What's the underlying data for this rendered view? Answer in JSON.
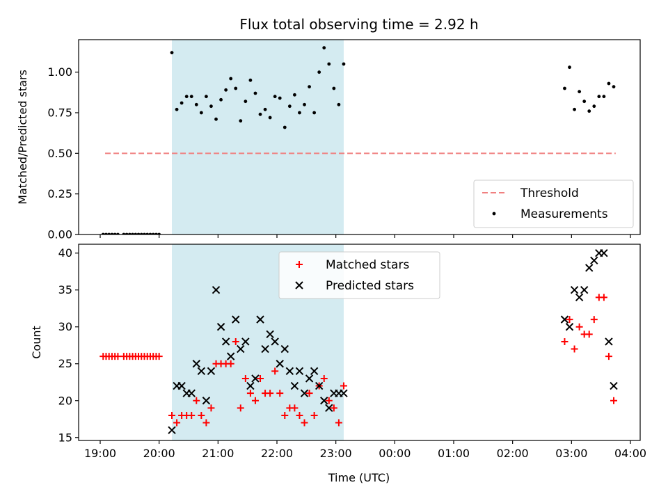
{
  "figure": {
    "title": "Flux total observing time = 2.92 h",
    "xlabel": "Time (UTC)",
    "xticks": [
      "19:00",
      "20:00",
      "21:00",
      "22:00",
      "23:00",
      "00:00",
      "01:00",
      "02:00",
      "03:00",
      "04:00"
    ]
  },
  "chart_data": [
    {
      "type": "scatter",
      "panel": "top",
      "ylabel": "Matched/Predicted stars",
      "ylim": [
        0,
        1.2
      ],
      "yticks": [
        "0.00",
        "0.25",
        "0.50",
        "0.75",
        "1.00"
      ],
      "shaded_interval": [
        "20:13",
        "23:08"
      ],
      "shaded_color": "#d4ebf1",
      "legend": {
        "placement": "bottom-right",
        "entries": [
          "Threshold",
          "Measurements"
        ]
      },
      "series": [
        {
          "name": "Threshold",
          "style": "dashed-line",
          "color": "#f08080",
          "points": [
            [
              "19:05",
              0.5
            ],
            [
              "23:59",
              0.5
            ],
            [
              "03:45",
              0.5
            ]
          ]
        },
        {
          "name": "Measurements",
          "style": "dot",
          "color": "#000000",
          "points": [
            [
              "19:03",
              0
            ],
            [
              "19:06",
              0
            ],
            [
              "19:09",
              0
            ],
            [
              "19:12",
              0
            ],
            [
              "19:15",
              0
            ],
            [
              "19:18",
              0
            ],
            [
              "19:24",
              0
            ],
            [
              "19:27",
              0
            ],
            [
              "19:30",
              0
            ],
            [
              "19:33",
              0
            ],
            [
              "19:36",
              0
            ],
            [
              "19:39",
              0
            ],
            [
              "19:42",
              0
            ],
            [
              "19:45",
              0
            ],
            [
              "19:48",
              0
            ],
            [
              "19:51",
              0
            ],
            [
              "19:54",
              0
            ],
            [
              "19:57",
              0
            ],
            [
              "20:00",
              0
            ],
            [
              "20:13",
              1.12
            ],
            [
              "20:18",
              0.77
            ],
            [
              "20:23",
              0.81
            ],
            [
              "20:28",
              0.85
            ],
            [
              "20:33",
              0.85
            ],
            [
              "20:38",
              0.8
            ],
            [
              "20:43",
              0.75
            ],
            [
              "20:48",
              0.85
            ],
            [
              "20:53",
              0.79
            ],
            [
              "20:58",
              0.71
            ],
            [
              "21:03",
              0.83
            ],
            [
              "21:08",
              0.89
            ],
            [
              "21:13",
              0.96
            ],
            [
              "21:18",
              0.9
            ],
            [
              "21:23",
              0.7
            ],
            [
              "21:28",
              0.82
            ],
            [
              "21:33",
              0.95
            ],
            [
              "21:38",
              0.87
            ],
            [
              "21:43",
              0.74
            ],
            [
              "21:48",
              0.77
            ],
            [
              "21:53",
              0.72
            ],
            [
              "21:58",
              0.85
            ],
            [
              "22:03",
              0.84
            ],
            [
              "22:08",
              0.66
            ],
            [
              "22:13",
              0.79
            ],
            [
              "22:18",
              0.86
            ],
            [
              "22:23",
              0.75
            ],
            [
              "22:28",
              0.8
            ],
            [
              "22:33",
              0.91
            ],
            [
              "22:38",
              0.75
            ],
            [
              "22:43",
              1.0
            ],
            [
              "22:48",
              1.15
            ],
            [
              "22:53",
              1.05
            ],
            [
              "22:58",
              0.9
            ],
            [
              "23:03",
              0.8
            ],
            [
              "23:08",
              1.05
            ],
            [
              "02:53",
              0.9
            ],
            [
              "02:58",
              1.03
            ],
            [
              "03:03",
              0.77
            ],
            [
              "03:08",
              0.88
            ],
            [
              "03:13",
              0.82
            ],
            [
              "03:18",
              0.76
            ],
            [
              "03:23",
              0.79
            ],
            [
              "03:28",
              0.85
            ],
            [
              "03:33",
              0.85
            ],
            [
              "03:38",
              0.93
            ],
            [
              "03:43",
              0.91
            ]
          ]
        }
      ]
    },
    {
      "type": "scatter",
      "panel": "bottom",
      "ylabel": "Count",
      "ylim": [
        14.6,
        41.2
      ],
      "yticks": [
        "15",
        "20",
        "25",
        "30",
        "35",
        "40"
      ],
      "shaded_interval": [
        "20:13",
        "23:08"
      ],
      "shaded_color": "#d4ebf1",
      "legend": {
        "placement": "top-center",
        "entries": [
          "Matched stars",
          "Predicted stars"
        ]
      },
      "series": [
        {
          "name": "Matched stars",
          "style": "plus",
          "color": "#ff0000",
          "points": [
            [
              "19:03",
              26
            ],
            [
              "19:06",
              26
            ],
            [
              "19:09",
              26
            ],
            [
              "19:12",
              26
            ],
            [
              "19:15",
              26
            ],
            [
              "19:18",
              26
            ],
            [
              "19:24",
              26
            ],
            [
              "19:27",
              26
            ],
            [
              "19:30",
              26
            ],
            [
              "19:33",
              26
            ],
            [
              "19:36",
              26
            ],
            [
              "19:39",
              26
            ],
            [
              "19:42",
              26
            ],
            [
              "19:45",
              26
            ],
            [
              "19:48",
              26
            ],
            [
              "19:51",
              26
            ],
            [
              "19:54",
              26
            ],
            [
              "19:57",
              26
            ],
            [
              "20:00",
              26
            ],
            [
              "20:13",
              18
            ],
            [
              "20:18",
              17
            ],
            [
              "20:23",
              18
            ],
            [
              "20:28",
              18
            ],
            [
              "20:33",
              18
            ],
            [
              "20:38",
              20
            ],
            [
              "20:43",
              18
            ],
            [
              "20:48",
              17
            ],
            [
              "20:53",
              19
            ],
            [
              "20:58",
              25
            ],
            [
              "21:03",
              25
            ],
            [
              "21:08",
              25
            ],
            [
              "21:13",
              25
            ],
            [
              "21:18",
              28
            ],
            [
              "21:23",
              19
            ],
            [
              "21:28",
              23
            ],
            [
              "21:33",
              21
            ],
            [
              "21:38",
              20
            ],
            [
              "21:43",
              23
            ],
            [
              "21:48",
              21
            ],
            [
              "21:53",
              21
            ],
            [
              "21:58",
              24
            ],
            [
              "22:03",
              21
            ],
            [
              "22:08",
              18
            ],
            [
              "22:13",
              19
            ],
            [
              "22:18",
              19
            ],
            [
              "22:23",
              18
            ],
            [
              "22:28",
              17
            ],
            [
              "22:33",
              21
            ],
            [
              "22:38",
              18
            ],
            [
              "22:43",
              22
            ],
            [
              "22:48",
              23
            ],
            [
              "22:53",
              20
            ],
            [
              "22:58",
              19
            ],
            [
              "23:03",
              17
            ],
            [
              "23:08",
              22
            ],
            [
              "02:53",
              28
            ],
            [
              "02:58",
              31
            ],
            [
              "03:03",
              27
            ],
            [
              "03:08",
              30
            ],
            [
              "03:13",
              29
            ],
            [
              "03:18",
              29
            ],
            [
              "03:23",
              31
            ],
            [
              "03:28",
              34
            ],
            [
              "03:33",
              34
            ],
            [
              "03:38",
              26
            ],
            [
              "03:43",
              20
            ]
          ]
        },
        {
          "name": "Predicted stars",
          "style": "cross",
          "color": "#000000",
          "points": [
            [
              "20:13",
              16
            ],
            [
              "20:18",
              22
            ],
            [
              "20:23",
              22
            ],
            [
              "20:28",
              21
            ],
            [
              "20:33",
              21
            ],
            [
              "20:38",
              25
            ],
            [
              "20:43",
              24
            ],
            [
              "20:48",
              20
            ],
            [
              "20:53",
              24
            ],
            [
              "20:58",
              35
            ],
            [
              "21:03",
              30
            ],
            [
              "21:08",
              28
            ],
            [
              "21:13",
              26
            ],
            [
              "21:18",
              31
            ],
            [
              "21:23",
              27
            ],
            [
              "21:28",
              28
            ],
            [
              "21:33",
              22
            ],
            [
              "21:38",
              23
            ],
            [
              "21:43",
              31
            ],
            [
              "21:48",
              27
            ],
            [
              "21:53",
              29
            ],
            [
              "21:58",
              28
            ],
            [
              "22:03",
              25
            ],
            [
              "22:08",
              27
            ],
            [
              "22:13",
              24
            ],
            [
              "22:18",
              22
            ],
            [
              "22:23",
              24
            ],
            [
              "22:28",
              21
            ],
            [
              "22:33",
              23
            ],
            [
              "22:38",
              24
            ],
            [
              "22:43",
              22
            ],
            [
              "22:48",
              20
            ],
            [
              "22:53",
              19
            ],
            [
              "22:58",
              21
            ],
            [
              "23:03",
              21
            ],
            [
              "23:08",
              21
            ],
            [
              "02:53",
              31
            ],
            [
              "02:58",
              30
            ],
            [
              "03:03",
              35
            ],
            [
              "03:08",
              34
            ],
            [
              "03:13",
              35
            ],
            [
              "03:18",
              38
            ],
            [
              "03:23",
              39
            ],
            [
              "03:28",
              40
            ],
            [
              "03:33",
              40
            ],
            [
              "03:38",
              28
            ],
            [
              "03:43",
              22
            ]
          ]
        }
      ]
    }
  ]
}
